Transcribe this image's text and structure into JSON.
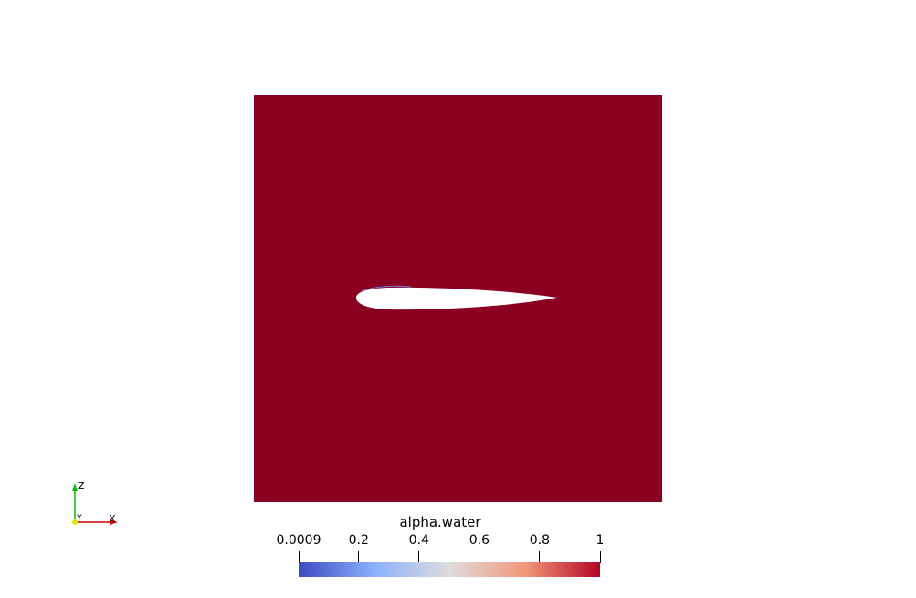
{
  "view": {
    "background": "#ffffff",
    "field_color": "#8b0020",
    "airfoil_color": "#ffffff"
  },
  "axes": {
    "z_label": "Z",
    "y_label": "Y",
    "x_label": "X",
    "z_color": "#00c000",
    "x_color": "#d00000",
    "y_color": "#e6e600"
  },
  "colorbar": {
    "title": "alpha.water",
    "colormap": "Cool to Warm",
    "range": [
      0.0009,
      1
    ],
    "ticks": [
      {
        "label": "0.0009",
        "value": 0.0009
      },
      {
        "label": "0.2",
        "value": 0.2
      },
      {
        "label": "0.4",
        "value": 0.4
      },
      {
        "label": "0.6",
        "value": 0.6
      },
      {
        "label": "0.8",
        "value": 0.8
      },
      {
        "label": "1",
        "value": 1
      }
    ],
    "colors": [
      "#3b4cc0",
      "#8db0fe",
      "#dddcdc",
      "#f4987a",
      "#b40426"
    ]
  }
}
